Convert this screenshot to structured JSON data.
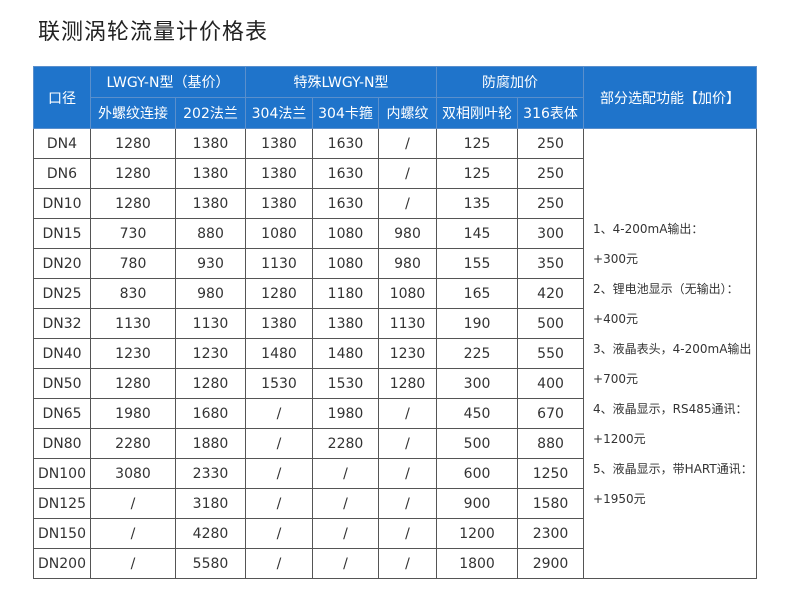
{
  "title": "联测涡轮流量计价格表",
  "header": {
    "size": "口径",
    "group1": "LWGY-N型（基价）",
    "group2": "特殊LWGY-N型",
    "group3": "防腐加价",
    "options": "部分选配功能【加价】",
    "sub": [
      "外螺纹连接",
      "202法兰",
      "304法兰",
      "304卡箍",
      "内螺纹",
      "双相刚叶轮",
      "316表体"
    ]
  },
  "rows": [
    [
      "DN4",
      "1280",
      "1380",
      "1380",
      "1630",
      "/",
      "125",
      "250"
    ],
    [
      "DN6",
      "1280",
      "1380",
      "1380",
      "1630",
      "/",
      "125",
      "250"
    ],
    [
      "DN10",
      "1280",
      "1380",
      "1380",
      "1630",
      "/",
      "135",
      "250"
    ],
    [
      "DN15",
      "730",
      "880",
      "1080",
      "1080",
      "980",
      "145",
      "300"
    ],
    [
      "DN20",
      "780",
      "930",
      "1130",
      "1080",
      "980",
      "155",
      "350"
    ],
    [
      "DN25",
      "830",
      "980",
      "1280",
      "1180",
      "1080",
      "165",
      "420"
    ],
    [
      "DN32",
      "1130",
      "1130",
      "1380",
      "1380",
      "1130",
      "190",
      "500"
    ],
    [
      "DN40",
      "1230",
      "1230",
      "1480",
      "1480",
      "1230",
      "225",
      "550"
    ],
    [
      "DN50",
      "1280",
      "1280",
      "1530",
      "1530",
      "1280",
      "300",
      "400"
    ],
    [
      "DN65",
      "1980",
      "1680",
      "/",
      "1980",
      "/",
      "450",
      "670"
    ],
    [
      "DN80",
      "2280",
      "1880",
      "/",
      "2280",
      "/",
      "500",
      "880"
    ],
    [
      "DN100",
      "3080",
      "2330",
      "/",
      "/",
      "/",
      "600",
      "1250"
    ],
    [
      "DN125",
      "/",
      "3180",
      "/",
      "/",
      "/",
      "900",
      "1580"
    ],
    [
      "DN150",
      "/",
      "4280",
      "/",
      "/",
      "/",
      "1200",
      "2300"
    ],
    [
      "DN200",
      "/",
      "5580",
      "/",
      "/",
      "/",
      "1800",
      "2900"
    ]
  ],
  "options": [
    "1、4-200mA输出：",
    "+300元",
    "2、锂电池显示（无输出）：",
    "+400元",
    "3、液晶表头，4-200mA输出",
    "+700元",
    "4、液晶显示，RS485通讯：",
    "+1200元",
    "5、液晶显示，带HART通讯：",
    "+1950元"
  ]
}
